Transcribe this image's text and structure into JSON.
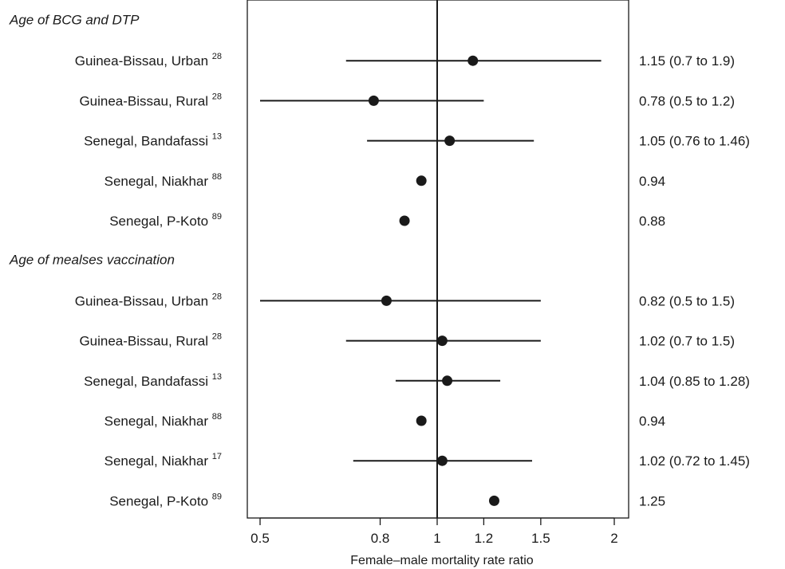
{
  "chart_data": {
    "type": "forest",
    "xlabel": "Female–male mortality rate ratio",
    "xscale": "log",
    "xlim": [
      0.48,
      2.12
    ],
    "xticks": [
      0.5,
      0.8,
      1,
      1.2,
      1.5,
      2
    ],
    "xtick_labels": [
      "0.5",
      "0.8",
      "1",
      "1.2",
      "1.5",
      "2"
    ],
    "reference_line": 1,
    "groups": [
      {
        "heading": "Age of BCG and DTP",
        "rows": [
          {
            "label": "Guinea-Bissau, Urban",
            "ref": "28",
            "estimate": 1.15,
            "ci": [
              0.7,
              1.9
            ],
            "text": "1.15 (0.7 to 1.9)"
          },
          {
            "label": "Guinea-Bissau, Rural",
            "ref": "28",
            "estimate": 0.78,
            "ci": [
              0.5,
              1.2
            ],
            "text": "0.78 (0.5 to 1.2)"
          },
          {
            "label": "Senegal, Bandafassi",
            "ref": "13",
            "estimate": 1.05,
            "ci": [
              0.76,
              1.46
            ],
            "text": "1.05 (0.76 to 1.46)"
          },
          {
            "label": "Senegal, Niakhar",
            "ref": "88",
            "estimate": 0.94,
            "ci": null,
            "text": "0.94"
          },
          {
            "label": "Senegal, P-Koto",
            "ref": "89",
            "estimate": 0.88,
            "ci": null,
            "text": "0.88"
          }
        ]
      },
      {
        "heading": "Age of mealses vaccination",
        "rows": [
          {
            "label": "Guinea-Bissau, Urban",
            "ref": "28",
            "estimate": 0.82,
            "ci": [
              0.5,
              1.5
            ],
            "text": "0.82 (0.5 to 1.5)"
          },
          {
            "label": "Guinea-Bissau, Rural",
            "ref": "28",
            "estimate": 1.02,
            "ci": [
              0.7,
              1.5
            ],
            "text": "1.02 (0.7 to 1.5)"
          },
          {
            "label": "Senegal, Bandafassi",
            "ref": "13",
            "estimate": 1.04,
            "ci": [
              0.85,
              1.28
            ],
            "text": "1.04 (0.85 to 1.28)"
          },
          {
            "label": "Senegal, Niakhar",
            "ref": "88",
            "estimate": 0.94,
            "ci": null,
            "text": "0.94"
          },
          {
            "label": "Senegal, Niakhar",
            "ref": "17",
            "estimate": 1.02,
            "ci": [
              0.72,
              1.45
            ],
            "text": "1.02 (0.72 to 1.45)"
          },
          {
            "label": "Senegal, P-Koto",
            "ref": "89",
            "estimate": 1.25,
            "ci": null,
            "text": "1.25"
          }
        ]
      }
    ],
    "colors": {
      "ink": "#1a1a1a",
      "background": "#ffffff"
    }
  }
}
